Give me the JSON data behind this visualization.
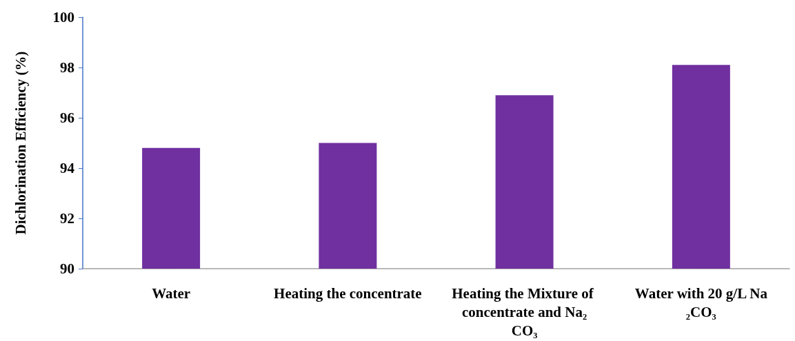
{
  "chart_data": {
    "type": "bar",
    "ylabel": "Dichlorination Efficiency (%)",
    "categories": [
      "Water",
      "Heating the concentrate",
      "Heating the Mixture of concentrate and Na₂CO₃",
      "Water with 20 g/L Na₂CO₃"
    ],
    "values": [
      94.8,
      95.0,
      96.9,
      98.1
    ],
    "color": "#7030a0",
    "ylim": [
      90,
      100
    ],
    "yticks": [
      90,
      92,
      94,
      96,
      98,
      100
    ],
    "grid": false
  }
}
